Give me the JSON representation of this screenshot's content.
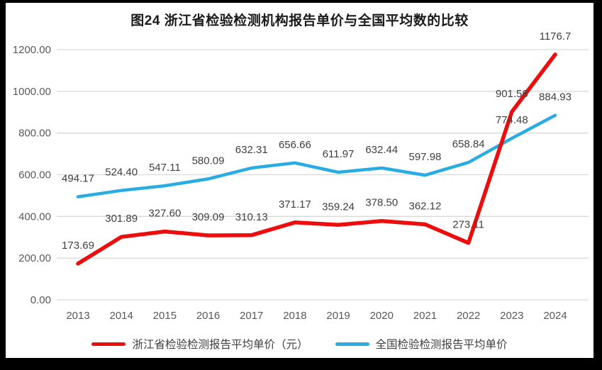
{
  "chart_data": {
    "type": "line",
    "title": "图24  浙江省检验检测机构报告单价与全国平均数的比较",
    "categories": [
      "2013",
      "2014",
      "2015",
      "2016",
      "2017",
      "2018",
      "2019",
      "2020",
      "2021",
      "2022",
      "2023",
      "2024"
    ],
    "series": [
      {
        "key": "zhejiang",
        "name": "浙江省检验检测报告平均单价（元）",
        "color": "#ee0d0d",
        "values": [
          173.69,
          301.89,
          327.6,
          309.09,
          310.13,
          371.17,
          359.24,
          378.5,
          362.12,
          273.11,
          901.56,
          1176.7
        ],
        "labels": [
          "173.69",
          "301.89",
          "327.60",
          "309.09",
          "310.13",
          "371.17",
          "359.24",
          "378.50",
          "362.12",
          "273.11",
          "901.56",
          "1176.7"
        ]
      },
      {
        "key": "national",
        "name": "全国检验检测报告平均单价",
        "color": "#29ace2",
        "values": [
          494.17,
          524.4,
          547.11,
          580.09,
          632.31,
          656.66,
          611.97,
          632.44,
          597.98,
          658.84,
          774.48,
          884.93
        ],
        "labels": [
          "494.17",
          "524.40",
          "547.11",
          "580.09",
          "632.31",
          "656.66",
          "611.97",
          "632.44",
          "597.98",
          "658.84",
          "774.48",
          "884.93"
        ]
      }
    ],
    "ylim": [
      0,
      1200
    ],
    "y_ticks": [
      {
        "value": 0,
        "label": "0.00"
      },
      {
        "value": 200,
        "label": "200.00"
      },
      {
        "value": 400,
        "label": "400.00"
      },
      {
        "value": 600,
        "label": "600.00"
      },
      {
        "value": 800,
        "label": "800.00"
      },
      {
        "value": 1000,
        "label": "1000.00"
      },
      {
        "value": 1200,
        "label": "1200.00"
      }
    ],
    "grid": true,
    "legend_position": "bottom",
    "xlabel": "",
    "ylabel": ""
  },
  "colors": {
    "gridline": "#d9d9d9",
    "axis_text": "#595959",
    "data_label_text": "#404040",
    "title_text": "#1a1a1a",
    "page_background": "#ffffff",
    "frame": "#000000"
  }
}
